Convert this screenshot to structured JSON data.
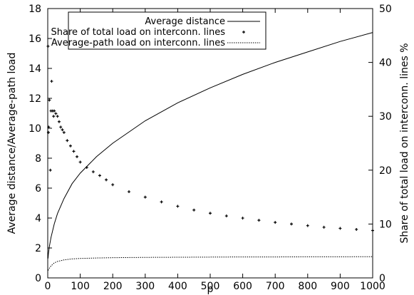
{
  "chart_data": {
    "type": "line",
    "xlabel": "p",
    "ylabel_left": "Average distance/Average-path load",
    "ylabel_right": "Share of total load on interconn. lines %",
    "xlim": [
      0,
      1000
    ],
    "ylim_left": [
      0,
      18
    ],
    "ylim_right": [
      0,
      50
    ],
    "x_ticks": [
      0,
      100,
      200,
      300,
      400,
      500,
      600,
      700,
      800,
      900,
      1000
    ],
    "y_left_ticks": [
      0,
      2,
      4,
      6,
      8,
      10,
      12,
      14,
      16,
      18
    ],
    "y_right_ticks": [
      0,
      10,
      20,
      30,
      40,
      50
    ],
    "grid": false,
    "legend_position": "top-left",
    "series": [
      {
        "name": "Average distance",
        "axis": "left",
        "style": "solid-line",
        "x": [
          1,
          2,
          5,
          10,
          20,
          30,
          50,
          75,
          100,
          150,
          200,
          300,
          400,
          500,
          600,
          700,
          800,
          900,
          1000
        ],
        "y": [
          1.3,
          1.6,
          2.1,
          2.7,
          3.6,
          4.3,
          5.3,
          6.3,
          7.0,
          8.1,
          9.0,
          10.5,
          11.7,
          12.7,
          13.6,
          14.4,
          15.1,
          15.8,
          16.4
        ]
      },
      {
        "name": "Share of total load on interconn. lines",
        "axis": "right",
        "style": "points",
        "x": [
          1,
          2,
          3,
          5,
          8,
          10,
          12,
          15,
          18,
          20,
          25,
          30,
          35,
          40,
          45,
          50,
          60,
          70,
          80,
          90,
          100,
          120,
          140,
          160,
          180,
          200,
          250,
          300,
          350,
          400,
          450,
          500,
          550,
          600,
          650,
          700,
          750,
          800,
          850,
          900,
          950,
          1000
        ],
        "y": [
          43,
          27,
          28,
          33,
          20,
          31,
          36.5,
          31,
          30,
          31,
          30.5,
          30,
          29,
          28,
          27.5,
          27,
          25.5,
          24.5,
          23.5,
          22.5,
          21.5,
          20.5,
          19.7,
          19,
          18.2,
          17.3,
          16,
          15,
          14.1,
          13.3,
          12.6,
          12,
          11.5,
          11.1,
          10.7,
          10.3,
          10,
          9.7,
          9.4,
          9.2,
          9,
          8.8
        ]
      },
      {
        "name": "Average-path load on interconn. lines",
        "axis": "left",
        "style": "dotted-line",
        "x": [
          1,
          5,
          10,
          20,
          30,
          50,
          75,
          100,
          150,
          200,
          300,
          400,
          500,
          600,
          700,
          800,
          900,
          1000
        ],
        "y": [
          0.5,
          0.65,
          0.8,
          1.0,
          1.1,
          1.2,
          1.27,
          1.3,
          1.33,
          1.35,
          1.37,
          1.38,
          1.39,
          1.4,
          1.4,
          1.41,
          1.41,
          1.42
        ]
      }
    ]
  }
}
